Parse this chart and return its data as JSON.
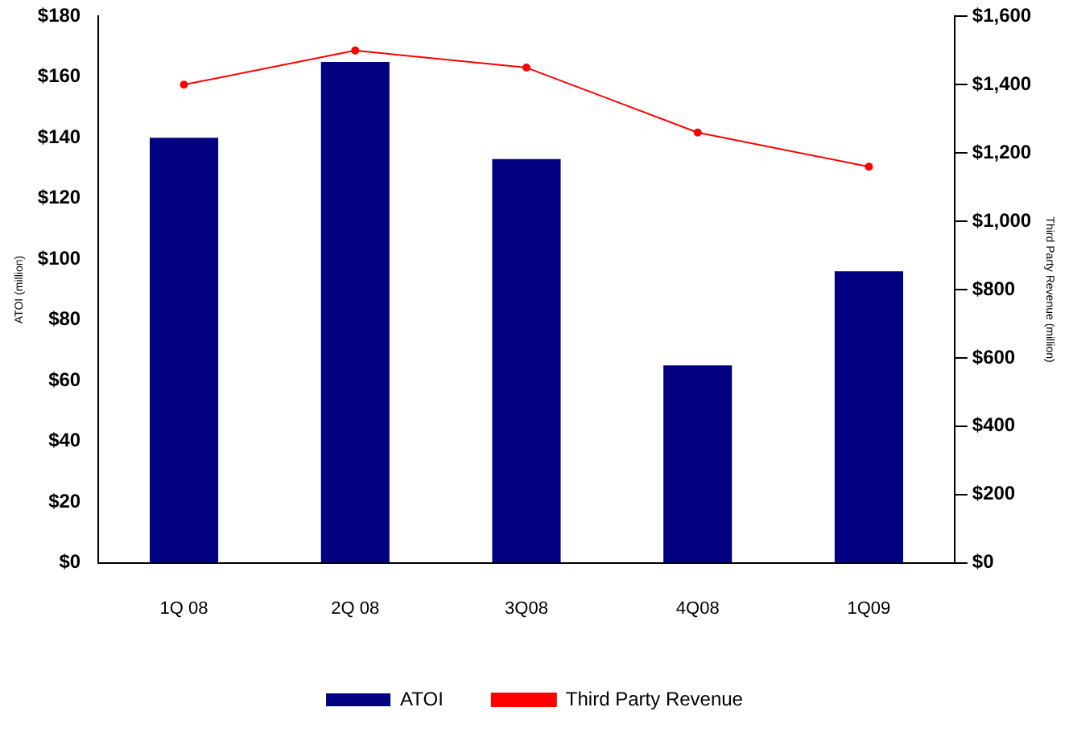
{
  "chart_data": {
    "type": "bar",
    "categories": [
      "1Q 08",
      "2Q 08",
      "3Q08",
      "4Q08",
      "1Q09"
    ],
    "series": [
      {
        "name": "ATOI",
        "color": "#000080",
        "values": [
          140,
          165,
          133,
          65,
          96
        ]
      },
      {
        "name": "Third Party Revenue",
        "type": "line",
        "axis": "y2",
        "color": "#ff0000",
        "marker": "circle",
        "values": [
          1400,
          1500,
          1450,
          1260,
          1160
        ]
      }
    ],
    "ylabel": "ATOI (million)",
    "y2label": "Third Party Revenue (million)",
    "ylim": [
      0,
      180
    ],
    "yticks": [
      {
        "value": 0,
        "label": "$0"
      },
      {
        "value": 20,
        "label": "$20"
      },
      {
        "value": 40,
        "label": "$40"
      },
      {
        "value": 60,
        "label": "$60"
      },
      {
        "value": 80,
        "label": "$80"
      },
      {
        "value": 100,
        "label": "$100"
      },
      {
        "value": 120,
        "label": "$120"
      },
      {
        "value": 140,
        "label": "$140"
      },
      {
        "value": 160,
        "label": "$160"
      },
      {
        "value": 180,
        "label": "$180"
      }
    ],
    "y2lim": [
      0,
      1600
    ],
    "y2ticks": [
      {
        "value": 0,
        "label": "$0"
      },
      {
        "value": 200,
        "label": "$200"
      },
      {
        "value": 400,
        "label": "$400"
      },
      {
        "value": 600,
        "label": "$600"
      },
      {
        "value": 800,
        "label": "$800"
      },
      {
        "value": 1000,
        "label": "$1,000"
      },
      {
        "value": 1200,
        "label": "$1,200"
      },
      {
        "value": 1400,
        "label": "$1,400"
      },
      {
        "value": 1600,
        "label": "$1,600"
      }
    ],
    "grid": false,
    "legend": "bottom"
  }
}
